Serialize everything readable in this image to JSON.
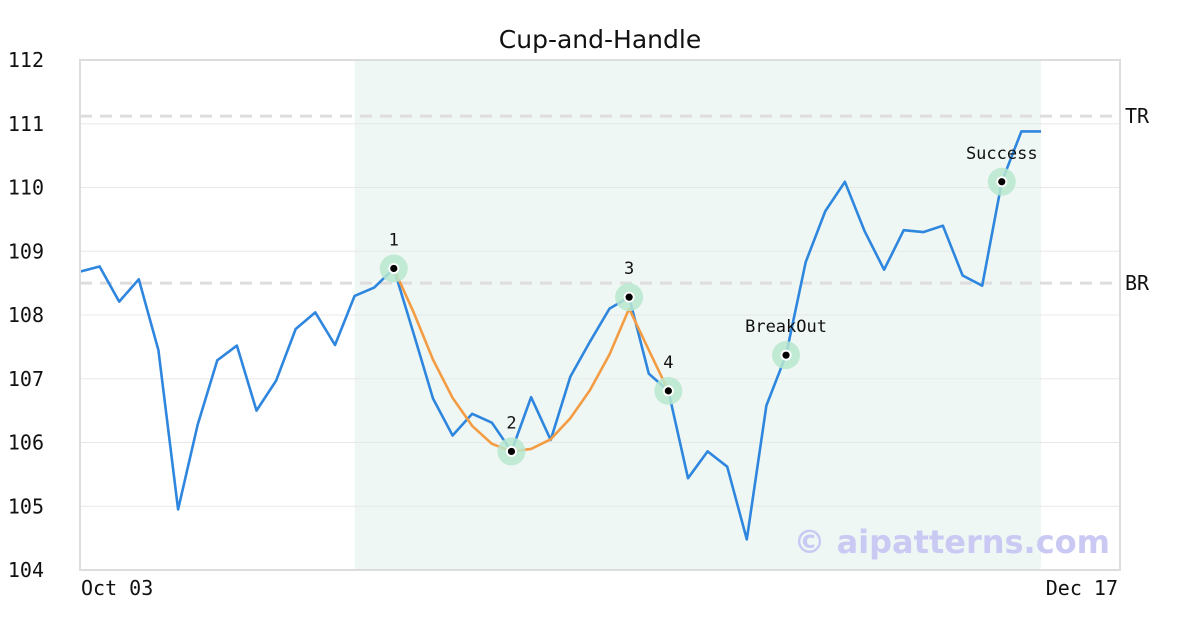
{
  "chart_data": {
    "type": "line",
    "title": "Cup-and-Handle",
    "ylim": [
      104,
      112
    ],
    "y_ticks": [
      "104",
      "105",
      "106",
      "107",
      "108",
      "109",
      "110",
      "111",
      "112"
    ],
    "x_tick_labels": [
      "Oct 03",
      "Dec 17"
    ],
    "grid": "horizontal",
    "series": [
      {
        "values": [
          108.68,
          108.76,
          108.21,
          108.56,
          107.45,
          104.95,
          106.28,
          107.29,
          107.52,
          106.5,
          106.97,
          107.78,
          108.04,
          107.53,
          108.3,
          108.43,
          108.73,
          107.72,
          106.69,
          106.11,
          106.45,
          106.31,
          105.86,
          106.71,
          106.04,
          107.03,
          107.58,
          108.1,
          108.28,
          107.08,
          106.81,
          105.44,
          105.86,
          105.62,
          104.48,
          106.58,
          107.37,
          108.83,
          109.63,
          110.09,
          109.32,
          108.71,
          109.33,
          109.3,
          109.4,
          108.62,
          108.46,
          110.09,
          110.88,
          110.88
        ],
        "color": "#2e86de"
      },
      {
        "x_index": [
          16,
          17,
          18,
          19,
          20,
          21,
          22,
          23,
          24,
          25,
          26,
          27,
          28,
          29,
          30
        ],
        "values": [
          108.73,
          108.05,
          107.3,
          106.7,
          106.26,
          105.98,
          105.86,
          105.9,
          106.05,
          106.38,
          106.82,
          107.38,
          108.1,
          107.45,
          106.81
        ],
        "color": "#f39c44"
      }
    ],
    "shaded_region": {
      "from_index": 14,
      "to_index": 49,
      "color": "#eef7f3"
    },
    "levels": [
      {
        "label": "TR",
        "value": 111.12
      },
      {
        "label": "BR",
        "value": 108.5
      }
    ],
    "annotations": [
      {
        "label": "1",
        "x_index": 16,
        "value": 108.73
      },
      {
        "label": "2",
        "x_index": 22,
        "value": 105.86
      },
      {
        "label": "3",
        "x_index": 28,
        "value": 108.28
      },
      {
        "label": "4",
        "x_index": 30,
        "value": 106.81
      },
      {
        "label": "BreakOut",
        "x_index": 36,
        "value": 107.37
      },
      {
        "label": "Success",
        "x_index": 47,
        "value": 110.09
      }
    ]
  },
  "watermark": "© aipatterns.com",
  "colors": {
    "axis": "#dddddd",
    "grid": "#e8e8e8",
    "level_line": "#dddddd",
    "marker_ring": "#b9e8cf"
  }
}
